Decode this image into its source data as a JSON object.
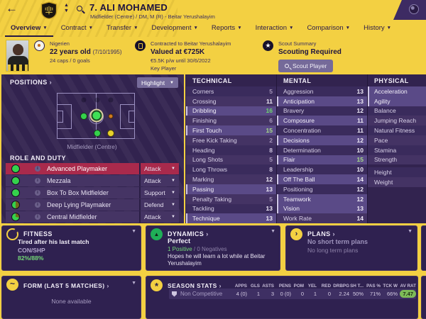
{
  "header": {
    "title": "7. ALI MOHAMED",
    "subtitle": "Midfielder (Centre) / DM, M (R) - Beitar Yerushalayim"
  },
  "tabs": [
    {
      "label": "Overview",
      "active": true
    },
    {
      "label": "Contract",
      "active": false
    },
    {
      "label": "Transfer",
      "active": false
    },
    {
      "label": "Development",
      "active": false
    },
    {
      "label": "Reports",
      "active": false
    },
    {
      "label": "Interaction",
      "active": false
    },
    {
      "label": "Comparison",
      "active": false
    },
    {
      "label": "History",
      "active": false
    }
  ],
  "info": {
    "nationality": "Nigerien",
    "age_bold": "22 years old",
    "age_date": "(7/10/1995)",
    "caps": "24 caps / 0 goals",
    "contracted": "Contracted to Beitar Yerushalayim",
    "valued": "Valued at €725K",
    "wage": "€5.5K p/w until 30/6/2022",
    "squad_status": "Key Player",
    "scout_summary": "Scout Summary",
    "scout_status": "Scouting Required",
    "scout_button": "Scout Player"
  },
  "positions": {
    "header": "POSITIONS",
    "highlight_button": "Highlight",
    "caption": "Midfielder (Centre)"
  },
  "roles": {
    "header": "ROLE AND DUTY",
    "items": [
      {
        "name": "Advanced Playmaker",
        "duty": "Attack",
        "fill": 1,
        "selected": true
      },
      {
        "name": "Mezzala",
        "duty": "Attack",
        "fill": 1,
        "selected": false
      },
      {
        "name": "Box To Box Midfielder",
        "duty": "Support",
        "fill": 0.95,
        "selected": false
      },
      {
        "name": "Deep Lying Playmaker",
        "duty": "Defend",
        "fill": 0.5,
        "selected": false
      },
      {
        "name": "Central Midfielder",
        "duty": "Attack",
        "fill": 0.72,
        "selected": false
      }
    ]
  },
  "attributes": {
    "technical": {
      "title": "TECHNICAL",
      "rows": [
        {
          "label": "Corners",
          "value": 5,
          "key": false
        },
        {
          "label": "Crossing",
          "value": 11,
          "key": false
        },
        {
          "label": "Dribbling",
          "value": 16,
          "key": true
        },
        {
          "label": "Finishing",
          "value": 6,
          "key": false
        },
        {
          "label": "First Touch",
          "value": 15,
          "key": true
        },
        {
          "label": "Free Kick Taking",
          "value": 2,
          "key": false
        },
        {
          "label": "Heading",
          "value": 8,
          "key": false
        },
        {
          "label": "Long Shots",
          "value": 5,
          "key": false
        },
        {
          "label": "Long Throws",
          "value": 8,
          "key": false
        },
        {
          "label": "Marking",
          "value": 12,
          "key": false
        },
        {
          "label": "Passing",
          "value": 13,
          "key": true
        },
        {
          "label": "Penalty Taking",
          "value": 5,
          "key": false
        },
        {
          "label": "Tackling",
          "value": 13,
          "key": false
        },
        {
          "label": "Technique",
          "value": 13,
          "key": true
        }
      ]
    },
    "mental": {
      "title": "MENTAL",
      "rows": [
        {
          "label": "Aggression",
          "value": 13,
          "key": false
        },
        {
          "label": "Anticipation",
          "value": 13,
          "key": true
        },
        {
          "label": "Bravery",
          "value": 12,
          "key": false
        },
        {
          "label": "Composure",
          "value": 11,
          "key": true
        },
        {
          "label": "Concentration",
          "value": 11,
          "key": false
        },
        {
          "label": "Decisions",
          "value": 12,
          "key": true
        },
        {
          "label": "Determination",
          "value": 10,
          "key": false
        },
        {
          "label": "Flair",
          "value": 15,
          "key": true
        },
        {
          "label": "Leadership",
          "value": 10,
          "key": false
        },
        {
          "label": "Off The Ball",
          "value": 14,
          "key": true
        },
        {
          "label": "Positioning",
          "value": 12,
          "key": false
        },
        {
          "label": "Teamwork",
          "value": 12,
          "key": true
        },
        {
          "label": "Vision",
          "value": 13,
          "key": true
        },
        {
          "label": "Work Rate",
          "value": 14,
          "key": false
        }
      ]
    },
    "physical": {
      "title": "PHYSICAL",
      "rows": [
        {
          "label": "Acceleration",
          "value": "",
          "key": true
        },
        {
          "label": "Agility",
          "value": "",
          "key": true
        },
        {
          "label": "Balance",
          "value": "",
          "key": false
        },
        {
          "label": "Jumping Reach",
          "value": "",
          "key": false
        },
        {
          "label": "Natural Fitness",
          "value": "",
          "key": false
        },
        {
          "label": "Pace",
          "value": "",
          "key": false
        },
        {
          "label": "Stamina",
          "value": "",
          "key": false
        },
        {
          "label": "Strength",
          "value": "",
          "key": false
        },
        {
          "label": "Height",
          "value": "",
          "key": false,
          "gap_before": true
        },
        {
          "label": "Weight",
          "value": "",
          "key": false
        }
      ]
    }
  },
  "panels": {
    "fitness": {
      "title": "FITNESS",
      "line1": "Tired after his last match",
      "line2": "CON/SHP",
      "line3": "82%/88%"
    },
    "dynamics": {
      "title": "DYNAMICS",
      "status": "Perfect",
      "positives": "1 Positive",
      "separator": " / ",
      "negatives": "0 Negatives",
      "note": "Hopes he will learn a lot while at Beitar Yerushalayim"
    },
    "plans": {
      "title": "PLANS",
      "short_plan": "No short term plans",
      "long_plan": "No long term plans"
    },
    "form": {
      "title": "FORM (LAST 5 MATCHES)",
      "empty": "None available"
    },
    "stats": {
      "title": "SEASON STATS",
      "columns": [
        "APPS",
        "GLS",
        "ASTS",
        "PENS",
        "POM",
        "YEL",
        "RED",
        "DRBPG",
        "SH T...",
        "PAS %",
        "TCK W",
        "AV RAT"
      ],
      "row_name": "Non Competitive",
      "values": [
        "4 (0)",
        "1",
        "3",
        "0 (0)",
        "0",
        "1",
        "0",
        "2.24",
        "50%",
        "71%",
        "66%"
      ],
      "rating": "7.47"
    }
  },
  "colors": {
    "accent_yellow": "#f3d042",
    "panel_purple": "#32234f",
    "selected_role_red": "#a92a4c",
    "high_attr_green": "#6ed86e",
    "rating_green": "#7dbb57",
    "natural_position_green": "#35d14c",
    "accomplished_yellow": "#e8d12c",
    "unconvincing_orange": "#cf7a1e"
  }
}
